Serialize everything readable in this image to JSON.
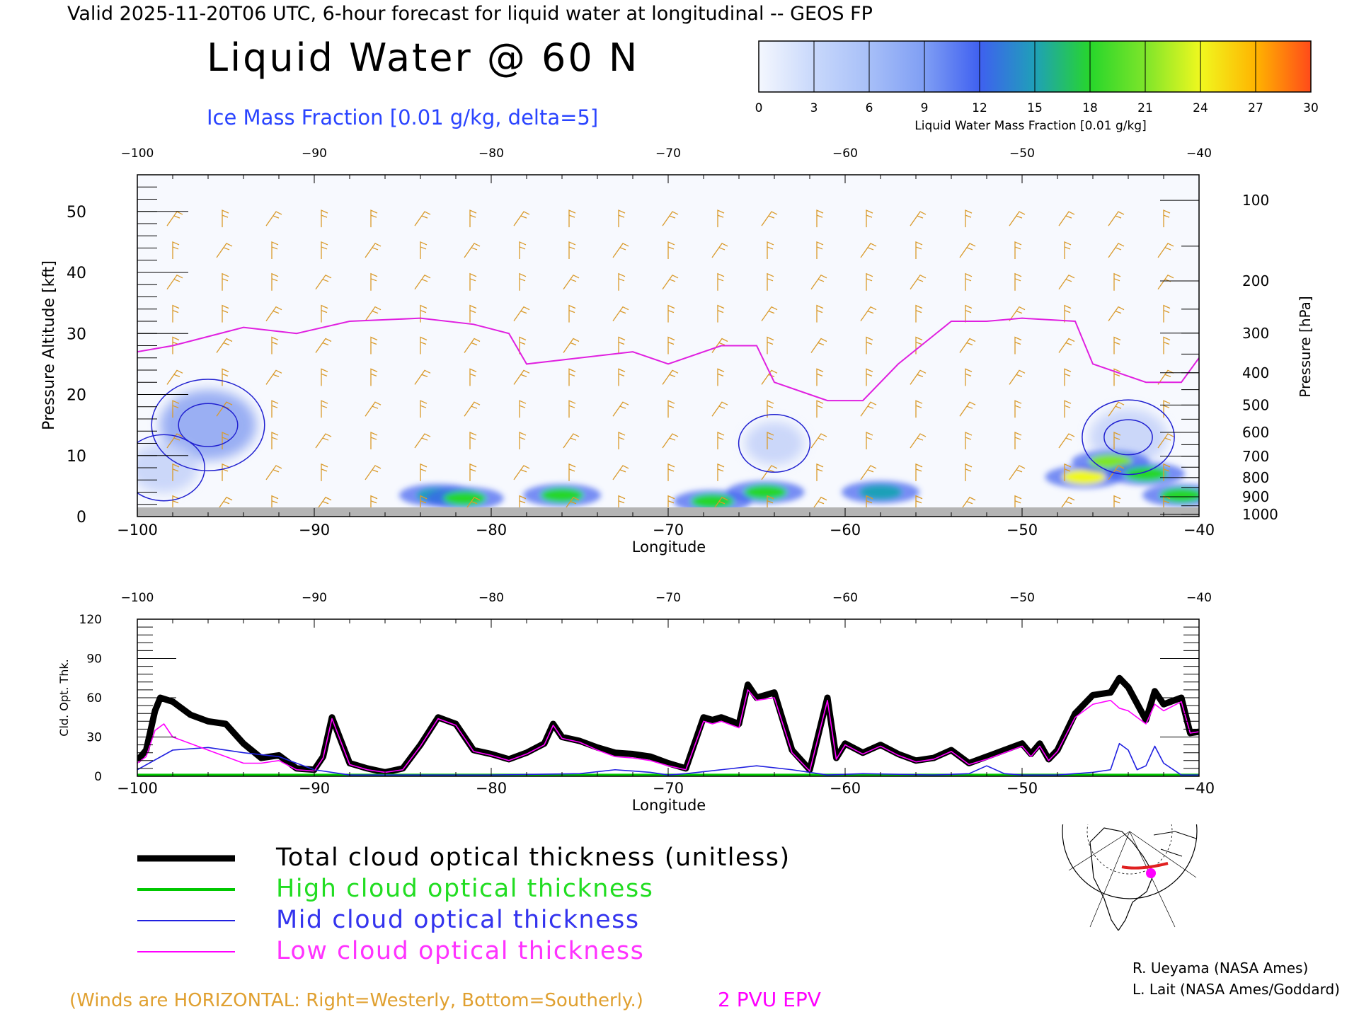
{
  "header": {
    "valid_line": "Valid 2025-11-20T06 UTC, 6-hour forecast for liquid water at longitudinal -- GEOS FP",
    "title": "Liquid Water @ 60 N",
    "subtitle": "Ice Mass Fraction [0.01 g/kg, delta=5]"
  },
  "colorbar": {
    "ticks": [
      "0",
      "3",
      "6",
      "9",
      "12",
      "15",
      "18",
      "21",
      "24",
      "27",
      "30"
    ],
    "colors": [
      "#f4f7fe",
      "#c8d8fb",
      "#a7bff8",
      "#7f9ef4",
      "#3f60f0",
      "#1fa0b8",
      "#27d62b",
      "#7ee52a",
      "#f0f81f",
      "#ffb400",
      "#ff4a1a"
    ],
    "label": "Liquid Water Mass Fraction [0.01 g/kg]"
  },
  "chart_data": [
    {
      "type": "heatmap",
      "x_top_ticks": [
        "-100",
        "-90",
        "-80",
        "-70",
        "-60",
        "-50",
        "-40"
      ],
      "x_bottom_ticks": [
        "-100",
        "-90",
        "-80",
        "-70",
        "-60",
        "-50",
        "-40"
      ],
      "xlabel": "Longitude",
      "xlim": [
        -100,
        -40
      ],
      "ylabel": "Pressure Altitude [kft]",
      "ylim": [
        0,
        56
      ],
      "y_ticks": [
        "0",
        "10",
        "20",
        "30",
        "40",
        "50"
      ],
      "y2label": "Pressure [hPa]",
      "y2_ticks": [
        "100",
        "200",
        "300",
        "400",
        "500",
        "600",
        "700",
        "800",
        "900",
        "1000"
      ],
      "colors": {
        "ice_contour": "#2020d0",
        "epv": "#e020e0",
        "wind": "#d99a2b",
        "ground": "#b4b4b4"
      },
      "liquid_water_patches": [
        {
          "lon": -83,
          "alt": 3.5,
          "level": 15
        },
        {
          "lon": -81.5,
          "alt": 3,
          "level": 17
        },
        {
          "lon": -76,
          "alt": 3.5,
          "level": 17
        },
        {
          "lon": -67.5,
          "alt": 2.5,
          "level": 17
        },
        {
          "lon": -64.5,
          "alt": 4,
          "level": 17
        },
        {
          "lon": -58,
          "alt": 4,
          "level": 15
        },
        {
          "lon": -46.5,
          "alt": 6.5,
          "level": 24
        },
        {
          "lon": -45,
          "alt": 9,
          "level": 20
        },
        {
          "lon": -43,
          "alt": 7,
          "level": 18
        },
        {
          "lon": -41,
          "alt": 3.5,
          "level": 18
        }
      ],
      "ice_mass_patches": [
        {
          "lon": -96,
          "alt": 15,
          "level": 8
        },
        {
          "lon": -98.5,
          "alt": 8,
          "level": 5
        },
        {
          "lon": -64,
          "alt": 12,
          "level": 4
        },
        {
          "lon": -44,
          "alt": 13,
          "level": 6
        }
      ],
      "epv_2pvu_line": [
        [
          -100,
          27
        ],
        [
          -98,
          28
        ],
        [
          -94,
          31
        ],
        [
          -91,
          30
        ],
        [
          -88,
          32
        ],
        [
          -84,
          32.5
        ],
        [
          -81,
          31.5
        ],
        [
          -79,
          30
        ],
        [
          -78,
          25
        ],
        [
          -75,
          26
        ],
        [
          -72,
          27
        ],
        [
          -70,
          25
        ],
        [
          -67,
          28
        ],
        [
          -65,
          28
        ],
        [
          -64,
          22
        ],
        [
          -62,
          20
        ],
        [
          -61,
          19
        ],
        [
          -59,
          19
        ],
        [
          -57,
          25
        ],
        [
          -54,
          32
        ],
        [
          -52,
          32
        ],
        [
          -50,
          32.5
        ],
        [
          -47,
          32
        ],
        [
          -46,
          25
        ],
        [
          -43,
          22
        ],
        [
          -41,
          22
        ],
        [
          -40,
          26
        ]
      ]
    },
    {
      "type": "line",
      "x_top_ticks": [
        "-100",
        "-90",
        "-80",
        "-70",
        "-60",
        "-50",
        "-40"
      ],
      "x_bottom_ticks": [
        "-100",
        "-90",
        "-80",
        "-70",
        "-60",
        "-50",
        "-40"
      ],
      "xlabel": "Longitude",
      "ylabel": "Cld. Opt. Thk.",
      "y_ticks": [
        "0",
        "30",
        "60",
        "90",
        "120"
      ],
      "xlim": [
        -100,
        -40
      ],
      "ylim": [
        0,
        120
      ],
      "series": [
        {
          "name": "Total cloud optical thickness (unitless)",
          "color": "#000000",
          "x": [
            -100,
            -99.5,
            -99,
            -98.7,
            -98,
            -97,
            -96,
            -95,
            -94,
            -93,
            -92,
            -91,
            -90,
            -89.5,
            -89,
            -88,
            -87,
            -86,
            -85,
            -84,
            -83,
            -82,
            -81,
            -80,
            -79,
            -78,
            -77,
            -76.5,
            -76,
            -75,
            -74,
            -73,
            -72,
            -71,
            -70,
            -69,
            -68,
            -67.5,
            -67,
            -66,
            -65.5,
            -65,
            -64,
            -63,
            -62,
            -61,
            -60.5,
            -60,
            -59,
            -58,
            -57,
            -56,
            -55,
            -54,
            -53,
            -52,
            -51,
            -50,
            -49.5,
            -49,
            -48.5,
            -48,
            -47,
            -46,
            -45,
            -44.5,
            -44,
            -43,
            -42.5,
            -42,
            -41,
            -40.5,
            -40
          ],
          "y": [
            12,
            20,
            50,
            60,
            57,
            47,
            42,
            40,
            25,
            14,
            16,
            6,
            5,
            15,
            45,
            10,
            6,
            3,
            6,
            24,
            45,
            40,
            20,
            17,
            13,
            18,
            25,
            40,
            30,
            27,
            22,
            18,
            17,
            15,
            10,
            6,
            45,
            43,
            45,
            40,
            70,
            60,
            64,
            20,
            5,
            60,
            14,
            25,
            18,
            24,
            17,
            12,
            14,
            20,
            10,
            15,
            20,
            25,
            17,
            25,
            13,
            20,
            48,
            62,
            64,
            75,
            68,
            43,
            65,
            55,
            60,
            33,
            34
          ]
        },
        {
          "name": "High cloud optical thickness",
          "color": "#00c800",
          "x": [
            -100,
            -40
          ],
          "y": [
            1,
            1
          ]
        },
        {
          "name": "Mid cloud optical thickness",
          "color": "#2020e0",
          "x": [
            -100,
            -98,
            -96,
            -94,
            -92,
            -90,
            -88,
            -80,
            -75,
            -73,
            -71,
            -70,
            -69,
            -67,
            -65,
            -63,
            -61,
            -59,
            -55,
            -53,
            -52,
            -51,
            -50,
            -48,
            -46,
            -45,
            -44.5,
            -44,
            -43.5,
            -43,
            -42.5,
            -42,
            -41,
            -40
          ],
          "y": [
            5,
            20,
            22,
            18,
            15,
            5,
            1,
            1,
            2,
            5,
            3,
            1,
            2,
            5,
            8,
            5,
            1,
            2,
            1,
            2,
            8,
            2,
            1,
            1,
            3,
            5,
            25,
            20,
            5,
            8,
            23,
            10,
            1,
            1
          ]
        },
        {
          "name": "Low cloud optical thickness",
          "color": "#ff00ff",
          "x": [
            -100,
            -99.5,
            -99,
            -98.5,
            -98,
            -97,
            -96,
            -95,
            -94,
            -93,
            -92,
            -91,
            -90,
            -89.5,
            -89,
            -88,
            -87,
            -86,
            -85,
            -84,
            -83,
            -82,
            -81,
            -80,
            -79,
            -78,
            -77,
            -76.5,
            -76,
            -75,
            -74,
            -73,
            -72,
            -71,
            -70,
            -69,
            -68,
            -67.5,
            -67,
            -66,
            -65.5,
            -65,
            -64,
            -63,
            -62,
            -61,
            -60.5,
            -60,
            -59,
            -58,
            -57,
            -56,
            -55,
            -54,
            -53,
            -52,
            -51,
            -50,
            -49.5,
            -49,
            -48.5,
            -48,
            -47,
            -46,
            -45,
            -44.5,
            -44,
            -43,
            -42.5,
            -42,
            -41,
            -40.5,
            -40
          ],
          "y": [
            10,
            15,
            35,
            40,
            30,
            25,
            20,
            15,
            10,
            10,
            12,
            5,
            4,
            14,
            44,
            9,
            5,
            3,
            5,
            23,
            44,
            39,
            19,
            16,
            12,
            17,
            24,
            39,
            29,
            26,
            20,
            15,
            14,
            12,
            8,
            5,
            42,
            40,
            42,
            37,
            66,
            58,
            60,
            18,
            4,
            58,
            13,
            24,
            17,
            23,
            16,
            11,
            13,
            19,
            9,
            13,
            18,
            23,
            15,
            23,
            12,
            19,
            45,
            55,
            58,
            52,
            50,
            40,
            55,
            50,
            57,
            33,
            34
          ]
        }
      ]
    }
  ],
  "legend": {
    "total": "Total cloud optical thickness (unitless)",
    "high": "High cloud optical thickness",
    "mid": "Mid cloud optical thickness",
    "low": "Low cloud optical thickness"
  },
  "footer": {
    "winds": "(Winds are HORIZONTAL: Right=Westerly, Bottom=Southerly.)",
    "epv": "2 PVU EPV",
    "credit1": "R. Ueyama (NASA Ames)",
    "credit2": "L. Lait (NASA Ames/Goddard)"
  }
}
